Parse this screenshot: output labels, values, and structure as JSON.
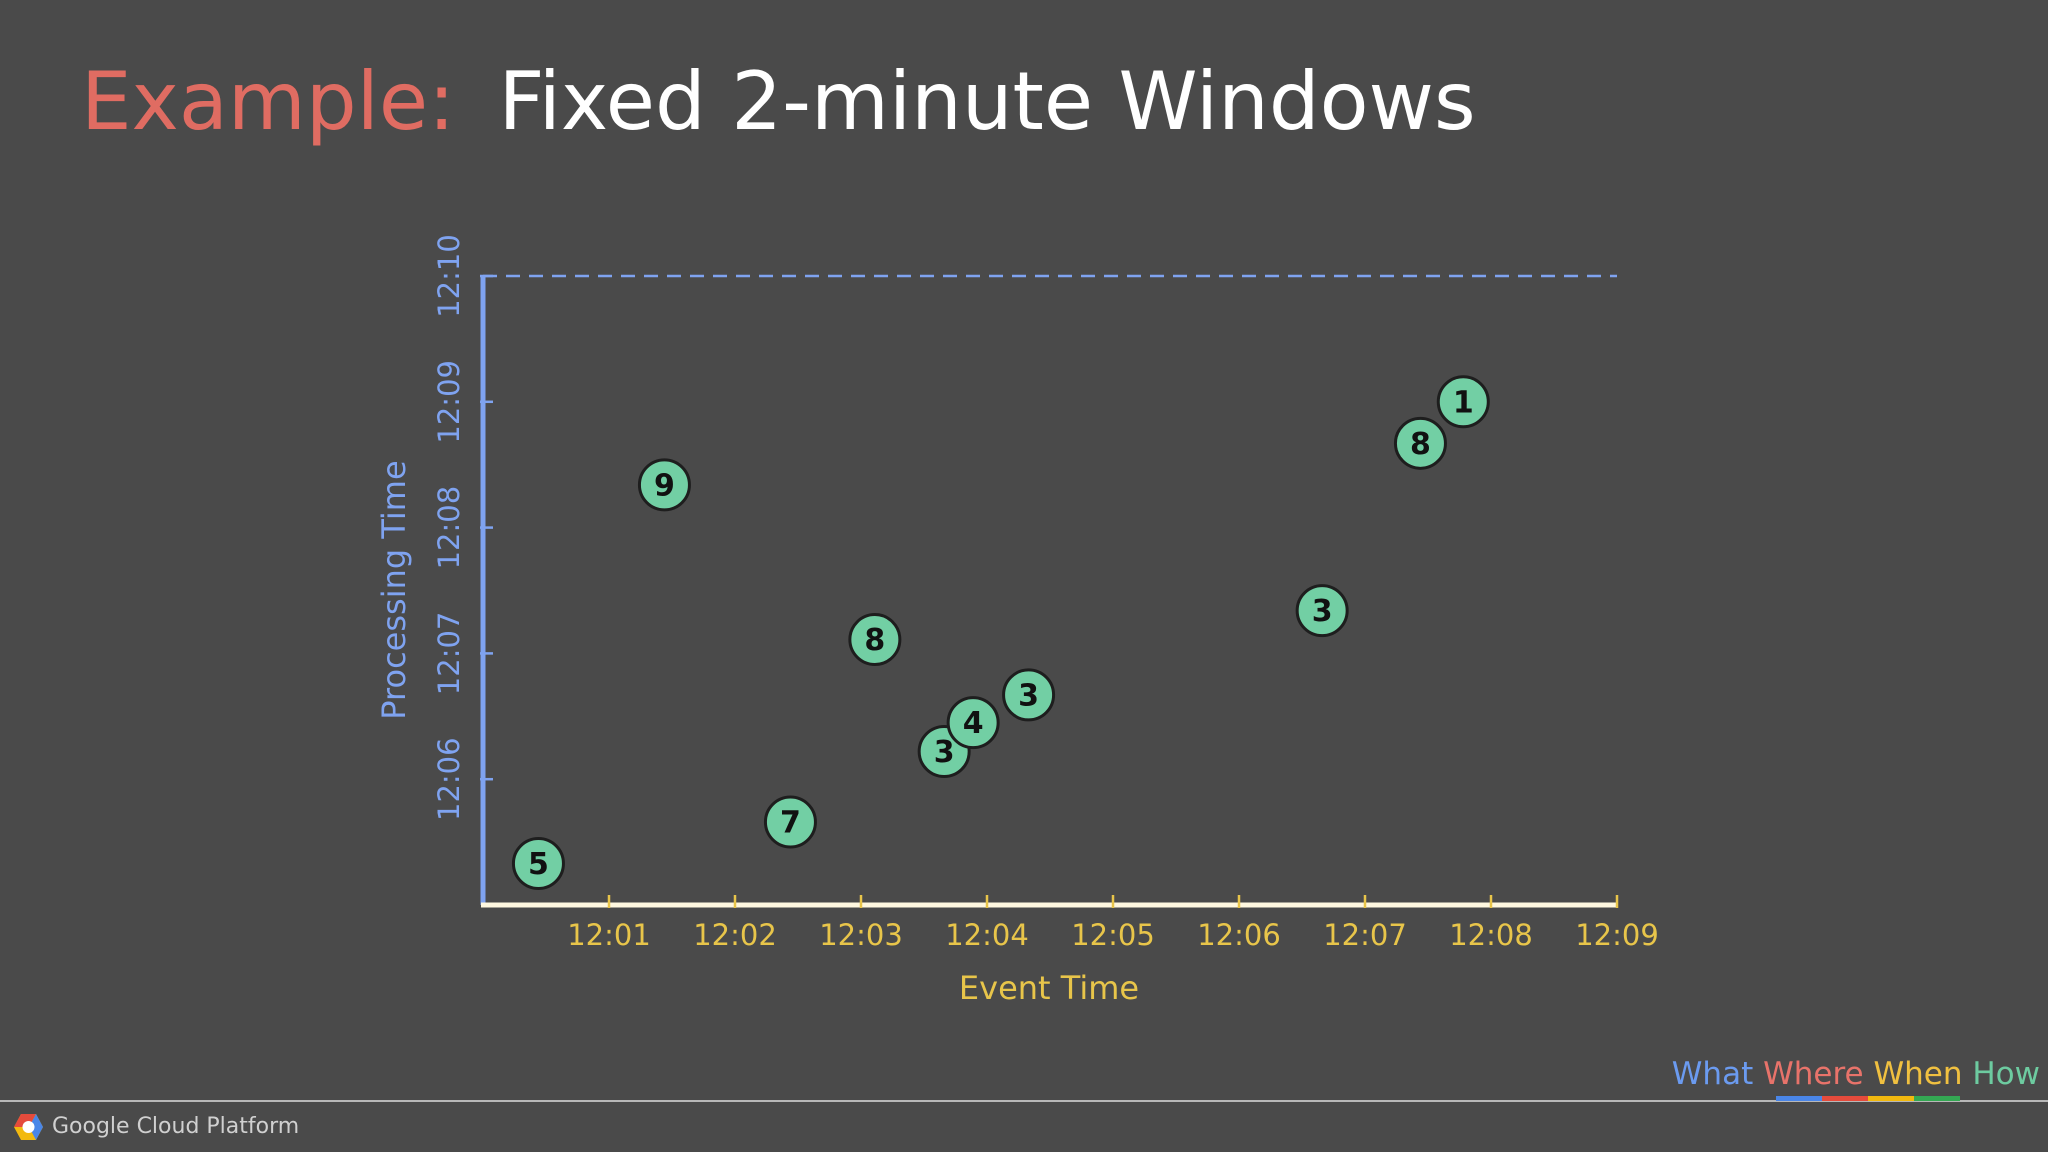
{
  "title_prefix": "Example:",
  "title": "Fixed 2-minute Windows",
  "chart_data": {
    "type": "scatter",
    "xlabel": "Event Time",
    "ylabel": "Processing Time",
    "x": [
      0.44,
      1.44,
      2.44,
      3.11,
      3.66,
      3.89,
      4.33,
      6.66,
      7.44,
      7.78
    ],
    "values": [
      5.33,
      8.34,
      5.66,
      7.11,
      6.22,
      6.45,
      6.67,
      7.34,
      8.67,
      9.0
    ],
    "scores": [
      5,
      9,
      7,
      8,
      3,
      4,
      3,
      3,
      8,
      1
    ],
    "color": "#72cfa4",
    "xlim": [
      0,
      9
    ],
    "ylim": [
      5,
      10
    ],
    "xticks": [
      {
        "value": 1,
        "label": "12:01"
      },
      {
        "value": 2,
        "label": "12:02"
      },
      {
        "value": 3,
        "label": "12:03"
      },
      {
        "value": 4,
        "label": "12:04"
      },
      {
        "value": 5,
        "label": "12:05"
      },
      {
        "value": 6,
        "label": "12:06"
      },
      {
        "value": 7,
        "label": "12:07"
      },
      {
        "value": 8,
        "label": "12:08"
      },
      {
        "value": 9,
        "label": "12:09"
      }
    ],
    "yticks": [
      {
        "value": 6,
        "label": "12:06"
      },
      {
        "value": 7,
        "label": "12:07"
      },
      {
        "value": 8,
        "label": "12:08"
      },
      {
        "value": 9,
        "label": "12:09"
      },
      {
        "value": 10,
        "label": "12:10"
      }
    ]
  },
  "footer": {
    "brand": "Google Cloud Platform",
    "nav": [
      "What",
      "Where",
      "When",
      "How"
    ]
  }
}
